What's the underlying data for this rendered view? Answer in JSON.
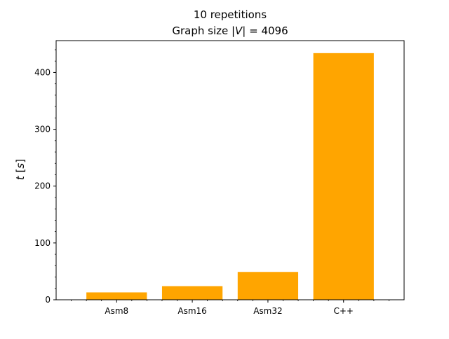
{
  "chart_data": {
    "type": "bar",
    "title_line1": "10 repetitions",
    "title_line2_prefix": "Graph size |",
    "title_line2_var": "V",
    "title_line2_suffix": "| = 4096",
    "xlabel": "",
    "ylabel_var": "t",
    "ylabel_unit": "s",
    "categories": [
      "Asm8",
      "Asm16",
      "Asm32",
      "C++"
    ],
    "values": [
      13,
      24,
      49,
      434
    ],
    "ylim": [
      0,
      456
    ],
    "yticks": [
      0,
      100,
      200,
      300,
      400
    ],
    "yticks_minor": [
      20,
      40,
      60,
      80,
      120,
      140,
      160,
      180,
      220,
      240,
      260,
      280,
      320,
      340,
      360,
      380,
      420,
      440
    ],
    "bar_color": "#ffa500",
    "grid": false,
    "legend": "none"
  }
}
